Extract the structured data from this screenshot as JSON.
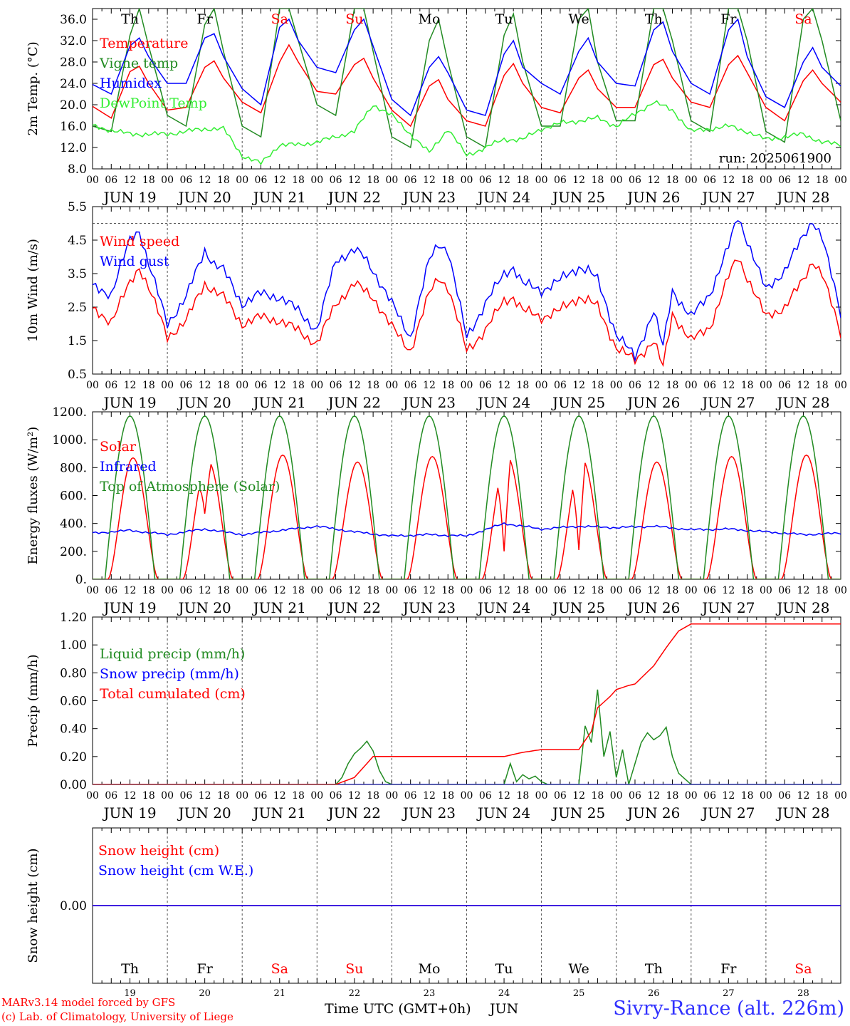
{
  "run_label": "run: 2025061900",
  "hour_ticks": [
    "00",
    "06",
    "12",
    "18"
  ],
  "date_labels": [
    "JUN 19",
    "JUN 20",
    "JUN 21",
    "JUN 22",
    "JUN 23",
    "JUN 24",
    "JUN 25",
    "JUN 26",
    "JUN 27",
    "JUN 28"
  ],
  "day_numbers": [
    "19",
    "20",
    "21",
    "22",
    "23",
    "24",
    "25",
    "26",
    "27",
    "28"
  ],
  "weekdays": [
    {
      "label": "Th",
      "color": "#000000"
    },
    {
      "label": "Fr",
      "color": "#000000"
    },
    {
      "label": "Sa",
      "color": "#ff0000"
    },
    {
      "label": "Su",
      "color": "#ff0000"
    },
    {
      "label": "Mo",
      "color": "#000000"
    },
    {
      "label": "Tu",
      "color": "#000000"
    },
    {
      "label": "We",
      "color": "#000000"
    },
    {
      "label": "Th",
      "color": "#000000"
    },
    {
      "label": "Fr",
      "color": "#000000"
    },
    {
      "label": "Sa",
      "color": "#ff0000"
    }
  ],
  "footer": {
    "credit_line1": "MARv3.14 model forced by GFS",
    "credit_line2": "(c) Lab. of Climatology, University of Liege",
    "xaxis_title": "Time UTC (GMT+0h)",
    "month": "JUN",
    "station": "Sivry-Rance (alt. 226m)"
  },
  "chart_data": [
    {
      "type": "line",
      "ylabel": "2m Temp. (°C)",
      "ylim": [
        8,
        38
      ],
      "yticks": [
        "8.0",
        "12.0",
        "16.0",
        "20.0",
        "24.0",
        "28.0",
        "32.0",
        "36.0"
      ],
      "x_unit": "hours since JUN 19 00 UTC (tick labels show hour of day)",
      "series": [
        {
          "name": "Temperature",
          "color": "#ff0000",
          "x": [
            0,
            6,
            12,
            15,
            18,
            24,
            30,
            36,
            39,
            42,
            48,
            54,
            60,
            63,
            66,
            72,
            78,
            84,
            87,
            90,
            96,
            102,
            108,
            111,
            114,
            120,
            126,
            132,
            135,
            138,
            144,
            150,
            156,
            159,
            162,
            168,
            174,
            180,
            183,
            186,
            192,
            198,
            204,
            207,
            210,
            216,
            222,
            228,
            231,
            234,
            240
          ],
          "y": [
            19.7,
            17.5,
            26.2,
            27.2,
            24,
            19,
            19.5,
            27,
            28.2,
            25,
            20.5,
            18.5,
            28,
            31.2,
            28,
            22.5,
            22,
            27.5,
            28.7,
            25,
            19,
            16,
            23.5,
            24.7,
            21,
            17,
            16,
            25.5,
            27.7,
            24,
            19.5,
            18.5,
            25,
            26.5,
            23,
            19.5,
            19.5,
            27.5,
            28.5,
            25,
            20.5,
            19.5,
            27.5,
            29.2,
            26,
            19.5,
            17,
            24.5,
            26.5,
            24,
            20.5
          ]
        },
        {
          "name": "Vigne temp",
          "color": "#228b22",
          "x": [
            0,
            6,
            12,
            15,
            18,
            24,
            30,
            36,
            39,
            42,
            48,
            54,
            60,
            63,
            66,
            72,
            78,
            84,
            87,
            90,
            96,
            102,
            108,
            111,
            114,
            120,
            126,
            132,
            135,
            138,
            144,
            150,
            156,
            159,
            162,
            168,
            174,
            180,
            183,
            186,
            192,
            198,
            204,
            207,
            210,
            216,
            222,
            228,
            231,
            234,
            240
          ],
          "y": [
            16,
            15,
            33,
            38,
            31,
            18,
            16,
            35,
            38,
            30,
            16,
            14,
            38,
            38,
            32,
            20,
            18,
            38,
            38,
            30,
            14,
            12,
            32,
            36,
            28,
            14,
            12,
            33,
            37,
            28,
            16,
            16,
            36,
            38,
            28,
            17,
            17,
            38,
            38,
            32,
            17,
            15,
            38,
            38,
            32,
            15,
            13,
            36,
            38,
            32,
            17
          ]
        },
        {
          "name": "Humidex",
          "color": "#0000ff",
          "x": [
            0,
            6,
            12,
            15,
            18,
            24,
            30,
            36,
            39,
            42,
            48,
            54,
            60,
            63,
            66,
            72,
            78,
            84,
            87,
            90,
            96,
            102,
            108,
            111,
            114,
            120,
            126,
            132,
            135,
            138,
            144,
            150,
            156,
            159,
            162,
            168,
            174,
            180,
            183,
            186,
            192,
            198,
            204,
            207,
            210,
            216,
            222,
            228,
            231,
            234,
            240
          ],
          "y": [
            23.8,
            22,
            31,
            32.5,
            29,
            24,
            24,
            32.5,
            33.3,
            29,
            23,
            20,
            34.5,
            36,
            32,
            27,
            26,
            34,
            36,
            31,
            21,
            18,
            27,
            29,
            26,
            19,
            18,
            29.5,
            32,
            27,
            24,
            22,
            30,
            32.5,
            28,
            24,
            23.5,
            34,
            35.5,
            30,
            24,
            22,
            34,
            36,
            29,
            21.5,
            19.5,
            28,
            30.7,
            27,
            23.5
          ]
        },
        {
          "name": "DewPoint Temp",
          "color": "#33ee33",
          "x": [
            0,
            12,
            24,
            36,
            42,
            48,
            54,
            60,
            66,
            72,
            84,
            90,
            96,
            108,
            114,
            120,
            132,
            138,
            144,
            150,
            156,
            162,
            168,
            180,
            186,
            192,
            204,
            210,
            216,
            228,
            234,
            240
          ],
          "y": [
            16,
            14.5,
            14.5,
            15.5,
            15.5,
            10.5,
            9,
            12.5,
            12.5,
            13,
            15,
            20,
            18,
            11,
            15.5,
            10.5,
            13.5,
            13.5,
            15.5,
            16.5,
            17,
            17.5,
            16,
            20.5,
            19,
            15,
            16,
            15,
            13.5,
            14.5,
            13,
            12.5
          ]
        }
      ],
      "legend_placement": "top-left"
    },
    {
      "type": "line",
      "ylabel": "10m Wind (m/s)",
      "ylim": [
        0.5,
        5.5
      ],
      "yticks": [
        "0.5",
        "1.5",
        "2.5",
        "3.5",
        "4.5",
        "5.5"
      ],
      "reference_line": 5.0,
      "series": [
        {
          "name": "Wind speed",
          "color": "#ff0000",
          "x": [
            0,
            6,
            12,
            15,
            18,
            24,
            30,
            36,
            39,
            42,
            48,
            54,
            60,
            66,
            72,
            78,
            84,
            87,
            90,
            96,
            102,
            108,
            111,
            114,
            120,
            126,
            132,
            135,
            138,
            144,
            150,
            156,
            159,
            162,
            168,
            174,
            180,
            183,
            186,
            192,
            198,
            204,
            207,
            210,
            216,
            222,
            228,
            231,
            234,
            240
          ],
          "y": [
            2.4,
            2.1,
            3.2,
            3.7,
            3.1,
            1.6,
            2.1,
            3.2,
            3,
            2.8,
            2,
            2.2,
            2.1,
            1.8,
            1.4,
            2.6,
            3.2,
            3,
            2.8,
            1.9,
            1.2,
            2.9,
            3.4,
            3.1,
            1.2,
            1.8,
            2.7,
            2.8,
            2.4,
            2.2,
            2.4,
            2.8,
            2.7,
            2.5,
            1.3,
            0.9,
            1.5,
            0.7,
            2.3,
            1.5,
            1.9,
            3.4,
            4,
            3.4,
            2.2,
            2.5,
            3.3,
            3.9,
            3.5,
            1.7
          ]
        },
        {
          "name": "Wind gust",
          "color": "#0000ff",
          "x": [
            0,
            6,
            12,
            15,
            18,
            24,
            30,
            36,
            39,
            42,
            48,
            54,
            60,
            66,
            72,
            78,
            84,
            87,
            90,
            96,
            102,
            108,
            111,
            114,
            120,
            126,
            132,
            135,
            138,
            144,
            150,
            156,
            159,
            162,
            168,
            174,
            180,
            183,
            186,
            192,
            198,
            204,
            207,
            210,
            216,
            222,
            228,
            231,
            234,
            240
          ],
          "y": [
            3.1,
            2.9,
            4.5,
            4.8,
            3.8,
            2,
            2.8,
            4.2,
            3.8,
            3.6,
            2.6,
            2.9,
            2.8,
            2.4,
            1.8,
            3.9,
            4.2,
            4,
            3.6,
            2.6,
            1.6,
            3.9,
            4.4,
            4.2,
            1.6,
            2.6,
            3.5,
            3.7,
            3.2,
            3,
            3.3,
            3.7,
            3.6,
            3.3,
            1.7,
            1,
            2.4,
            1.3,
            3,
            2.2,
            2.9,
            4.3,
            5.2,
            4.5,
            3,
            3.6,
            4.6,
            5.1,
            4.6,
            2.3
          ]
        }
      ],
      "legend_placement": "top-left"
    },
    {
      "type": "line",
      "ylabel": "Energy fluxes (W/m²)",
      "ylim": [
        0,
        1200
      ],
      "yticks": [
        "0.",
        "200.",
        "400.",
        "600.",
        "800.",
        "1000.",
        "1200."
      ],
      "series": [
        {
          "name": "Solar",
          "color": "#ff0000",
          "daily_peak": [
            870,
            850,
            890,
            840,
            880,
            880,
            860,
            840,
            880,
            890
          ],
          "notes_dips": [
            [
              36,
              470
            ],
            [
              132,
              200
            ],
            [
              156,
              210
            ]
          ]
        },
        {
          "name": "Infrared",
          "color": "#0000ff",
          "x": [
            0,
            12,
            24,
            36,
            48,
            60,
            72,
            84,
            96,
            108,
            120,
            132,
            144,
            156,
            168,
            180,
            192,
            204,
            216,
            228,
            240
          ],
          "y": [
            330,
            350,
            320,
            360,
            320,
            350,
            380,
            340,
            310,
            320,
            310,
            400,
            360,
            380,
            370,
            380,
            355,
            360,
            340,
            320,
            330
          ]
        },
        {
          "name": "Top of Atmosphere (Solar)",
          "color": "#228b22",
          "daily_peak": 1170
        }
      ],
      "legend_placement": "top-left"
    },
    {
      "type": "line",
      "ylabel": "Precip (mm/h)",
      "ylim": [
        0,
        1.2
      ],
      "yticks": [
        "0.00",
        "0.20",
        "0.40",
        "0.60",
        "0.80",
        "1.00",
        "1.20"
      ],
      "series": [
        {
          "name": "Liquid precip (mm/h)",
          "color": "#228b22",
          "x": [
            0,
            78,
            80,
            82,
            84,
            86,
            88,
            90,
            92,
            94,
            96,
            98,
            100,
            132,
            134,
            136,
            138,
            140,
            142,
            144,
            146,
            148,
            150,
            152,
            154,
            156,
            158,
            160,
            162,
            164,
            166,
            168,
            170,
            172,
            174,
            176,
            178,
            180,
            182,
            184,
            186,
            188,
            190,
            192,
            240
          ],
          "y": [
            0,
            0,
            0.05,
            0.15,
            0.22,
            0.26,
            0.31,
            0.24,
            0.1,
            0.02,
            0,
            0,
            0,
            0,
            0.15,
            0.02,
            0.07,
            0.04,
            0.06,
            0.02,
            0,
            0,
            0,
            0,
            0,
            0,
            0.42,
            0.3,
            0.68,
            0.2,
            0.38,
            0.05,
            0.25,
            0,
            0.15,
            0.3,
            0.37,
            0.32,
            0.35,
            0.41,
            0.2,
            0.08,
            0.04,
            0,
            0
          ]
        },
        {
          "name": "Snow precip (mm/h)",
          "color": "#0000ff",
          "x": [
            0,
            240
          ],
          "y": [
            0,
            0
          ]
        },
        {
          "name": "Total cumulated (cm)",
          "color": "#ff0000",
          "x": [
            0,
            78,
            84,
            90,
            96,
            132,
            138,
            144,
            156,
            160,
            162,
            166,
            168,
            172,
            174,
            180,
            184,
            188,
            192,
            240
          ],
          "y": [
            0,
            0,
            0.05,
            0.2,
            0.2,
            0.2,
            0.23,
            0.25,
            0.25,
            0.38,
            0.55,
            0.63,
            0.68,
            0.71,
            0.72,
            0.85,
            0.98,
            1.1,
            1.15,
            1.15
          ]
        }
      ],
      "legend_placement": "top-left"
    },
    {
      "type": "line",
      "ylabel": "Snow height (cm)",
      "ylim": [
        -1,
        1
      ],
      "yticks": [
        "0.00"
      ],
      "series": [
        {
          "name": "Snow height (cm)",
          "color": "#ff0000",
          "x": [
            0,
            240
          ],
          "y": [
            0,
            0
          ]
        },
        {
          "name": "Snow height (cm W.E.)",
          "color": "#0000ff",
          "x": [
            0,
            240
          ],
          "y": [
            0,
            0
          ]
        }
      ],
      "legend_placement": "top-left"
    }
  ]
}
